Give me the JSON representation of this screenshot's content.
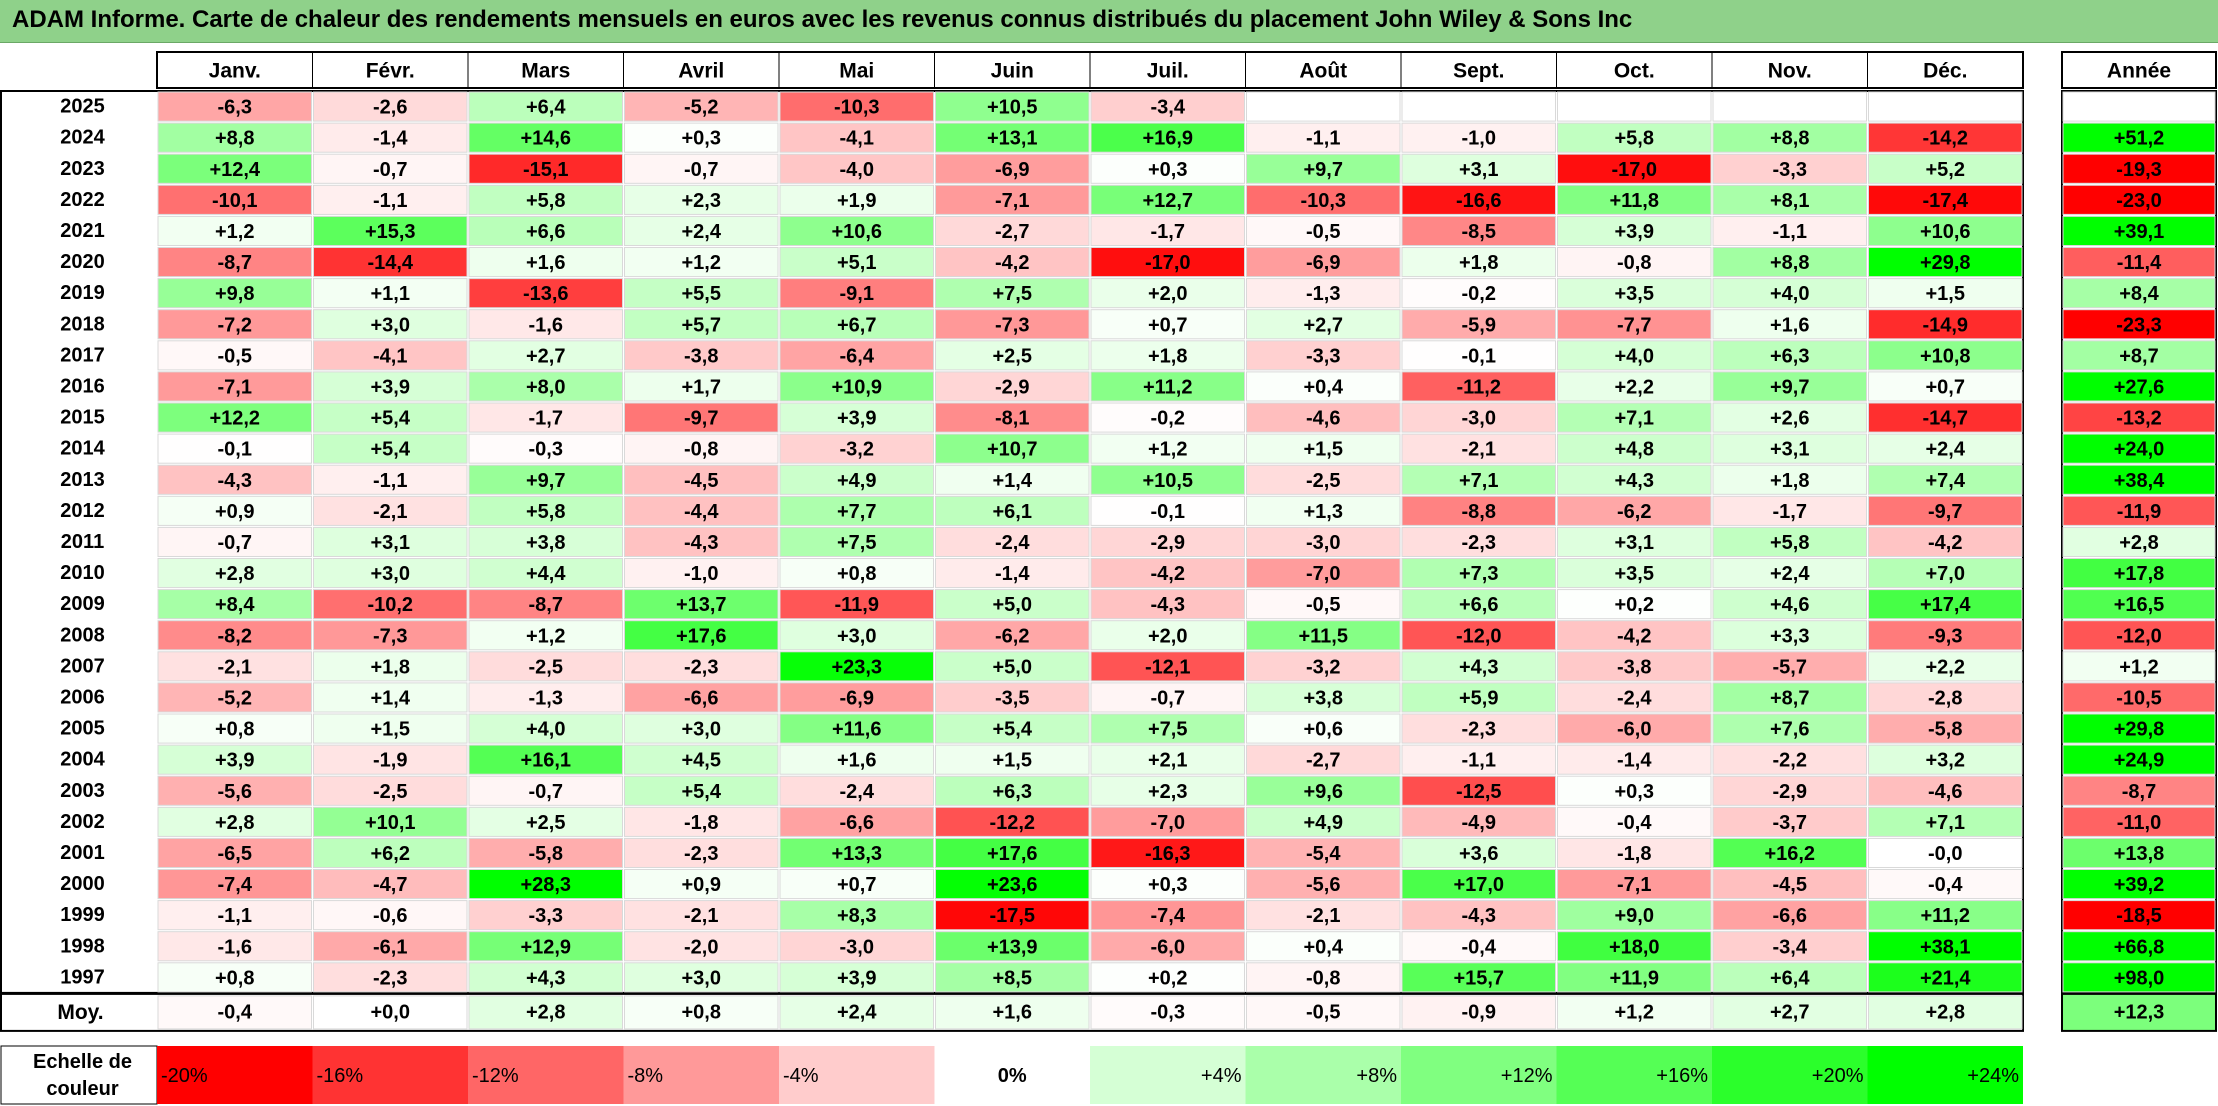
{
  "title": "ADAM Informe. Carte de chaleur des rendements mensuels en euros avec les revenus connus distribués du placement John Wiley & Sons Inc",
  "chart_data": {
    "type": "heatmap",
    "months": [
      "Janv.",
      "Févr.",
      "Mars",
      "Avril",
      "Mai",
      "Juin",
      "Juil.",
      "Août",
      "Sept.",
      "Oct.",
      "Nov.",
      "Déc."
    ],
    "year_header": "Année",
    "rows": [
      {
        "year": "2025",
        "values": [
          "-6,3",
          "-2,6",
          "+6,4",
          "-5,2",
          "-10,3",
          "+10,5",
          "-3,4",
          "",
          "",
          "",
          "",
          ""
        ],
        "annual": ""
      },
      {
        "year": "2024",
        "values": [
          "+8,8",
          "-1,4",
          "+14,6",
          "+0,3",
          "-4,1",
          "+13,1",
          "+16,9",
          "-1,1",
          "-1,0",
          "+5,8",
          "+8,8",
          "-14,2"
        ],
        "annual": "+51,2"
      },
      {
        "year": "2023",
        "values": [
          "+12,4",
          "-0,7",
          "-15,1",
          "-0,7",
          "-4,0",
          "-6,9",
          "+0,3",
          "+9,7",
          "+3,1",
          "-17,0",
          "-3,3",
          "+5,2"
        ],
        "annual": "-19,3"
      },
      {
        "year": "2022",
        "values": [
          "-10,1",
          "-1,1",
          "+5,8",
          "+2,3",
          "+1,9",
          "-7,1",
          "+12,7",
          "-10,3",
          "-16,6",
          "+11,8",
          "+8,1",
          "-17,4"
        ],
        "annual": "-23,0"
      },
      {
        "year": "2021",
        "values": [
          "+1,2",
          "+15,3",
          "+6,6",
          "+2,4",
          "+10,6",
          "-2,7",
          "-1,7",
          "-0,5",
          "-8,5",
          "+3,9",
          "-1,1",
          "+10,6"
        ],
        "annual": "+39,1"
      },
      {
        "year": "2020",
        "values": [
          "-8,7",
          "-14,4",
          "+1,6",
          "+1,2",
          "+5,1",
          "-4,2",
          "-17,0",
          "-6,9",
          "+1,8",
          "-0,8",
          "+8,8",
          "+29,8"
        ],
        "annual": "-11,4"
      },
      {
        "year": "2019",
        "values": [
          "+9,8",
          "+1,1",
          "-13,6",
          "+5,5",
          "-9,1",
          "+7,5",
          "+2,0",
          "-1,3",
          "-0,2",
          "+3,5",
          "+4,0",
          "+1,5"
        ],
        "annual": "+8,4"
      },
      {
        "year": "2018",
        "values": [
          "-7,2",
          "+3,0",
          "-1,6",
          "+5,7",
          "+6,7",
          "-7,3",
          "+0,7",
          "+2,7",
          "-5,9",
          "-7,7",
          "+1,6",
          "-14,9"
        ],
        "annual": "-23,3"
      },
      {
        "year": "2017",
        "values": [
          "-0,5",
          "-4,1",
          "+2,7",
          "-3,8",
          "-6,4",
          "+2,5",
          "+1,8",
          "-3,3",
          "-0,1",
          "+4,0",
          "+6,3",
          "+10,8"
        ],
        "annual": "+8,7"
      },
      {
        "year": "2016",
        "values": [
          "-7,1",
          "+3,9",
          "+8,0",
          "+1,7",
          "+10,9",
          "-2,9",
          "+11,2",
          "+0,4",
          "-11,2",
          "+2,2",
          "+9,7",
          "+0,7"
        ],
        "annual": "+27,6"
      },
      {
        "year": "2015",
        "values": [
          "+12,2",
          "+5,4",
          "-1,7",
          "-9,7",
          "+3,9",
          "-8,1",
          "-0,2",
          "-4,6",
          "-3,0",
          "+7,1",
          "+2,6",
          "-14,7"
        ],
        "annual": "-13,2"
      },
      {
        "year": "2014",
        "values": [
          "-0,1",
          "+5,4",
          "-0,3",
          "-0,8",
          "-3,2",
          "+10,7",
          "+1,2",
          "+1,5",
          "-2,1",
          "+4,8",
          "+3,1",
          "+2,4"
        ],
        "annual": "+24,0"
      },
      {
        "year": "2013",
        "values": [
          "-4,3",
          "-1,1",
          "+9,7",
          "-4,5",
          "+4,9",
          "+1,4",
          "+10,5",
          "-2,5",
          "+7,1",
          "+4,3",
          "+1,8",
          "+7,4"
        ],
        "annual": "+38,4"
      },
      {
        "year": "2012",
        "values": [
          "+0,9",
          "-2,1",
          "+5,8",
          "-4,4",
          "+7,7",
          "+6,1",
          "-0,1",
          "+1,3",
          "-8,8",
          "-6,2",
          "-1,7",
          "-9,7"
        ],
        "annual": "-11,9"
      },
      {
        "year": "2011",
        "values": [
          "-0,7",
          "+3,1",
          "+3,8",
          "-4,3",
          "+7,5",
          "-2,4",
          "-2,9",
          "-3,0",
          "-2,3",
          "+3,1",
          "+5,8",
          "-4,2"
        ],
        "annual": "+2,8"
      },
      {
        "year": "2010",
        "values": [
          "+2,8",
          "+3,0",
          "+4,4",
          "-1,0",
          "+0,8",
          "-1,4",
          "-4,2",
          "-7,0",
          "+7,3",
          "+3,5",
          "+2,4",
          "+7,0"
        ],
        "annual": "+17,8"
      },
      {
        "year": "2009",
        "values": [
          "+8,4",
          "-10,2",
          "-8,7",
          "+13,7",
          "-11,9",
          "+5,0",
          "-4,3",
          "-0,5",
          "+6,6",
          "+0,2",
          "+4,6",
          "+17,4"
        ],
        "annual": "+16,5"
      },
      {
        "year": "2008",
        "values": [
          "-8,2",
          "-7,3",
          "+1,2",
          "+17,6",
          "+3,0",
          "-6,2",
          "+2,0",
          "+11,5",
          "-12,0",
          "-4,2",
          "+3,3",
          "-9,3"
        ],
        "annual": "-12,0"
      },
      {
        "year": "2007",
        "values": [
          "-2,1",
          "+1,8",
          "-2,5",
          "-2,3",
          "+23,3",
          "+5,0",
          "-12,1",
          "-3,2",
          "+4,3",
          "-3,8",
          "-5,7",
          "+2,2"
        ],
        "annual": "+1,2"
      },
      {
        "year": "2006",
        "values": [
          "-5,2",
          "+1,4",
          "-1,3",
          "-6,6",
          "-6,9",
          "-3,5",
          "-0,7",
          "+3,8",
          "+5,9",
          "-2,4",
          "+8,7",
          "-2,8"
        ],
        "annual": "-10,5"
      },
      {
        "year": "2005",
        "values": [
          "+0,8",
          "+1,5",
          "+4,0",
          "+3,0",
          "+11,6",
          "+5,4",
          "+7,5",
          "+0,6",
          "-2,3",
          "-6,0",
          "+7,6",
          "-5,8"
        ],
        "annual": "+29,8"
      },
      {
        "year": "2004",
        "values": [
          "+3,9",
          "-1,9",
          "+16,1",
          "+4,5",
          "+1,6",
          "+1,5",
          "+2,1",
          "-2,7",
          "-1,1",
          "-1,4",
          "-2,2",
          "+3,2"
        ],
        "annual": "+24,9"
      },
      {
        "year": "2003",
        "values": [
          "-5,6",
          "-2,5",
          "-0,7",
          "+5,4",
          "-2,4",
          "+6,3",
          "+2,3",
          "+9,6",
          "-12,5",
          "+0,3",
          "-2,9",
          "-4,6"
        ],
        "annual": "-8,7"
      },
      {
        "year": "2002",
        "values": [
          "+2,8",
          "+10,1",
          "+2,5",
          "-1,8",
          "-6,6",
          "-12,2",
          "-7,0",
          "+4,9",
          "-4,9",
          "-0,4",
          "-3,7",
          "+7,1"
        ],
        "annual": "-11,0"
      },
      {
        "year": "2001",
        "values": [
          "-6,5",
          "+6,2",
          "-5,8",
          "-2,3",
          "+13,3",
          "+17,6",
          "-16,3",
          "-5,4",
          "+3,6",
          "-1,8",
          "+16,2",
          "-0,0"
        ],
        "annual": "+13,8"
      },
      {
        "year": "2000",
        "values": [
          "-7,4",
          "-4,7",
          "+28,3",
          "+0,9",
          "+0,7",
          "+23,6",
          "+0,3",
          "-5,6",
          "+17,0",
          "-7,1",
          "-4,5",
          "-0,4"
        ],
        "annual": "+39,2"
      },
      {
        "year": "1999",
        "values": [
          "-1,1",
          "-0,6",
          "-3,3",
          "-2,1",
          "+8,3",
          "-17,5",
          "-7,4",
          "-2,1",
          "-4,3",
          "+9,0",
          "-6,6",
          "+11,2"
        ],
        "annual": "-18,5"
      },
      {
        "year": "1998",
        "values": [
          "-1,6",
          "-6,1",
          "+12,9",
          "-2,0",
          "-3,0",
          "+13,9",
          "-6,0",
          "+0,4",
          "-0,4",
          "+18,0",
          "-3,4",
          "+38,1"
        ],
        "annual": "+66,8"
      },
      {
        "year": "1997",
        "values": [
          "+0,8",
          "-2,3",
          "+4,3",
          "+3,0",
          "+3,9",
          "+8,5",
          "+0,2",
          "-0,8",
          "+15,7",
          "+11,9",
          "+6,4",
          "+21,4"
        ],
        "annual": "+98,0"
      }
    ],
    "average": {
      "label": "Moy.",
      "values": [
        "-0,4",
        "+0,0",
        "+2,8",
        "+0,8",
        "+2,4",
        "+1,6",
        "-0,3",
        "-0,5",
        "-0,9",
        "+1,2",
        "+2,7",
        "+2,8"
      ],
      "annual": "+12,3"
    },
    "scale": {
      "label_line1": "Echelle de",
      "label_line2": "couleur",
      "steps": [
        "-20%",
        "-16%",
        "-12%",
        "-8%",
        "-4%",
        "0%",
        "+4%",
        "+8%",
        "+12%",
        "+16%",
        "+20%",
        "+24%"
      ]
    },
    "colors": {
      "negative": "#ff0000",
      "neutral": "#ffffff",
      "positive": "#00ff00",
      "title_bg": "#8fd18a"
    }
  }
}
